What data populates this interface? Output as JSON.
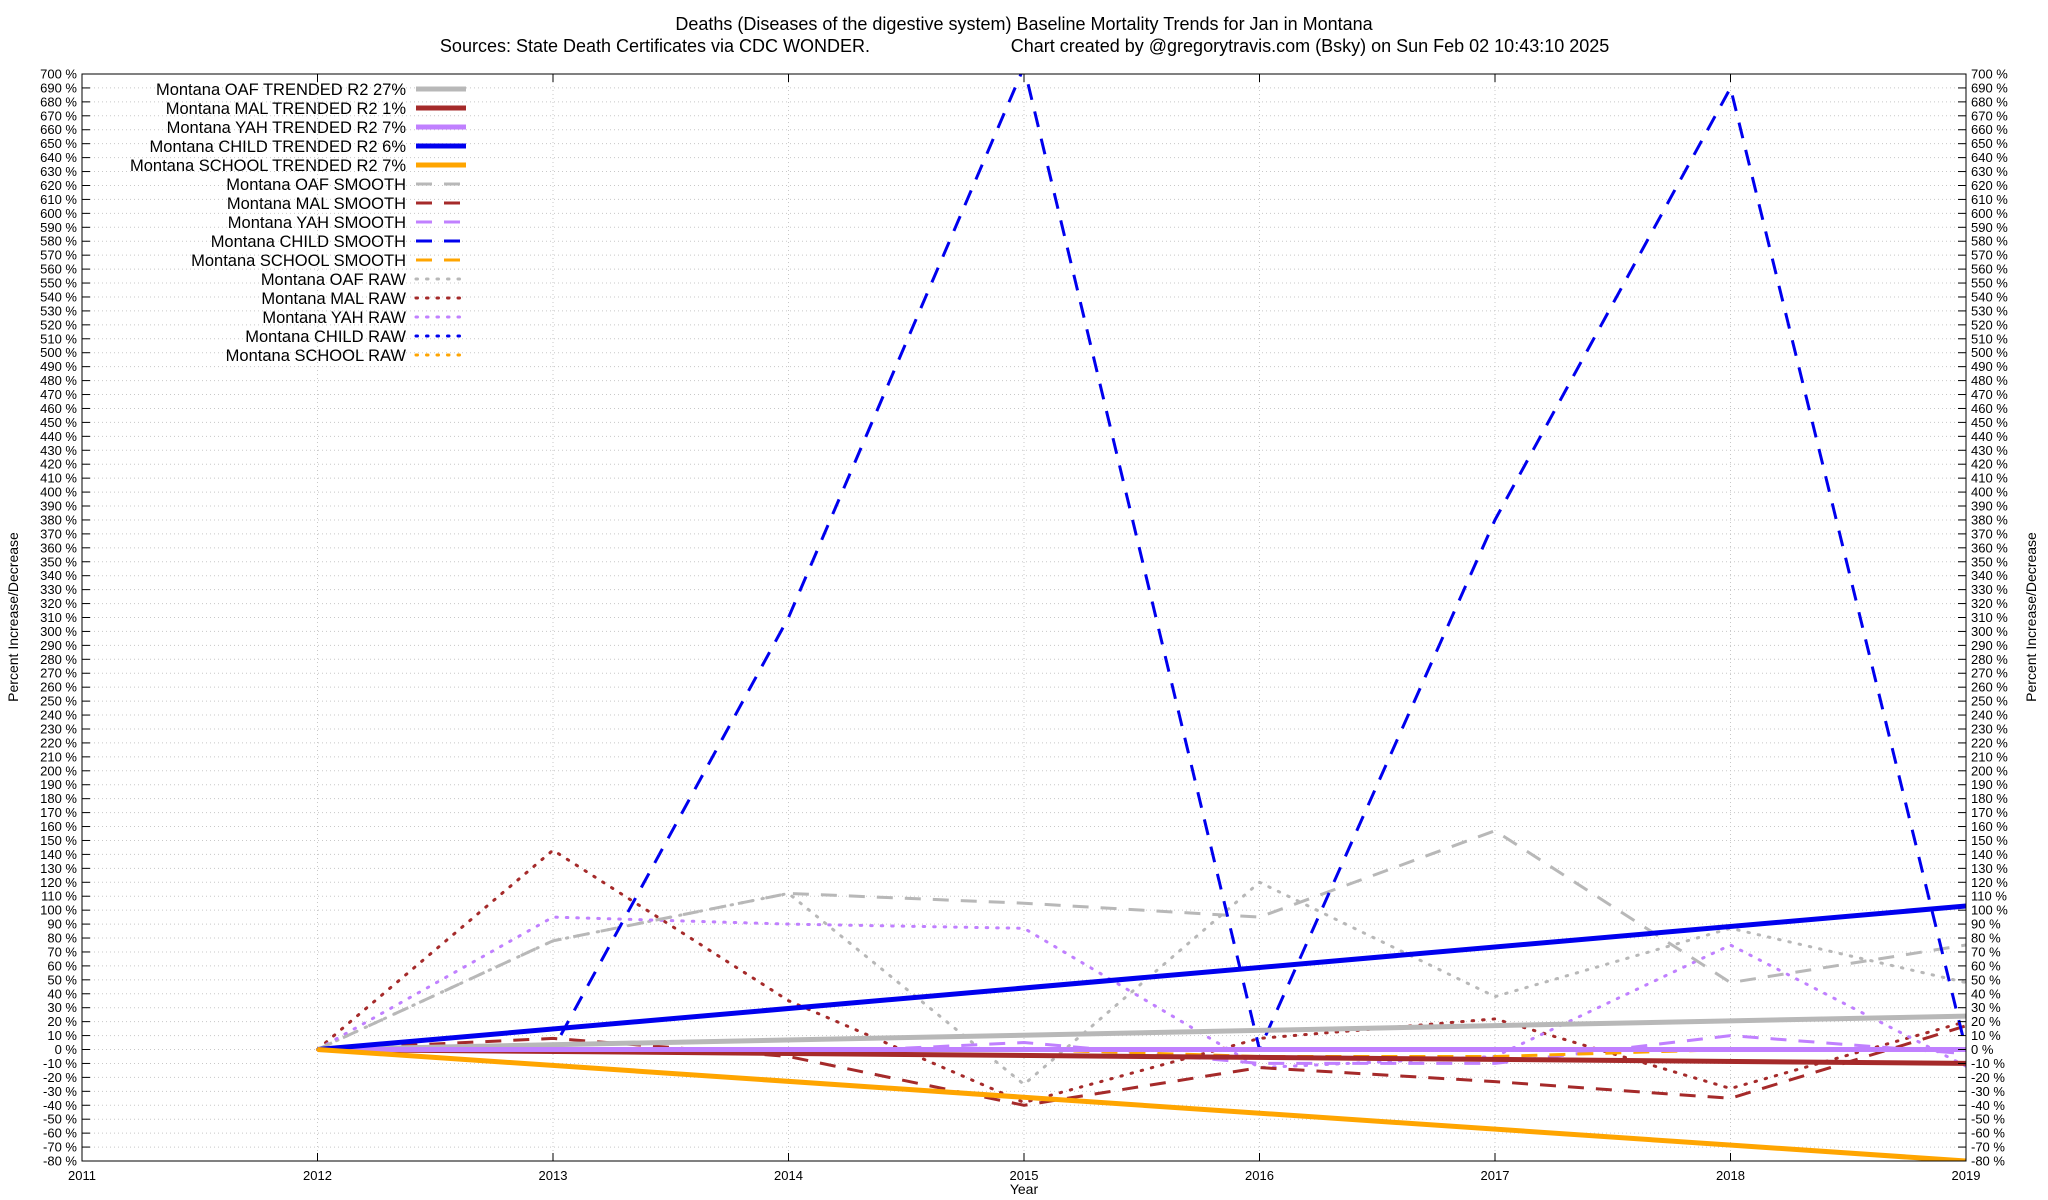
{
  "chart_data": {
    "type": "line",
    "title": "Deaths (Diseases of the digestive system)  Baseline Mortality Trends for Jan in Montana",
    "subtitle_left": "Sources: State Death Certificates via CDC WONDER.",
    "subtitle_right": "Chart created by @gregorytravis.com (Bsky) on Sun Feb 02 10:43:10 2025",
    "xlabel": "Year",
    "ylabel_left": "Percent Increase/Decrease",
    "ylabel_right": "Percent Increase/Decrease",
    "xlim": [
      2011,
      2019
    ],
    "ylim": [
      -80,
      700
    ],
    "x_ticks": [
      2011,
      2012,
      2013,
      2014,
      2015,
      2016,
      2017,
      2018,
      2019
    ],
    "y_tick_step": 10,
    "y_tick_suffix": " %",
    "grid": true,
    "legend_position": "top-left",
    "series": [
      {
        "name": "Montana OAF TRENDED R2",
        "r2": "27%",
        "style": "solid",
        "color": "#b8b8b8",
        "x": [
          2012,
          2019
        ],
        "y": [
          0,
          24
        ]
      },
      {
        "name": "Montana MAL TRENDED R2",
        "r2": "1%",
        "style": "solid",
        "color": "#a52a2a",
        "x": [
          2012,
          2019
        ],
        "y": [
          0,
          -10
        ]
      },
      {
        "name": "Montana YAH TRENDED R2",
        "r2": "7%",
        "style": "solid",
        "color": "#c080ff",
        "x": [
          2012,
          2019
        ],
        "y": [
          0,
          0
        ]
      },
      {
        "name": "Montana CHILD TRENDED R2",
        "r2": "6%",
        "style": "solid",
        "color": "#0000ee",
        "x": [
          2012,
          2019
        ],
        "y": [
          0,
          103
        ]
      },
      {
        "name": "Montana SCHOOL TRENDED R2",
        "r2": "7%",
        "style": "solid",
        "color": "#ffa500",
        "x": [
          2012,
          2019
        ],
        "y": [
          0,
          -80
        ]
      },
      {
        "name": "Montana OAF SMOOTH",
        "r2": "",
        "style": "dashed",
        "color": "#b8b8b8",
        "x": [
          2012,
          2013,
          2014,
          2015,
          2016,
          2017,
          2018,
          2019
        ],
        "y": [
          0,
          78,
          112,
          105,
          95,
          157,
          48,
          75
        ]
      },
      {
        "name": "Montana MAL SMOOTH",
        "r2": "",
        "style": "dashed",
        "color": "#a52a2a",
        "x": [
          2012,
          2013,
          2014,
          2015,
          2016,
          2017,
          2018,
          2019
        ],
        "y": [
          0,
          8,
          -5,
          -40,
          -13,
          -23,
          -35,
          17
        ]
      },
      {
        "name": "Montana YAH SMOOTH",
        "r2": "",
        "style": "dashed",
        "color": "#c080ff",
        "x": [
          2012,
          2013,
          2014,
          2015,
          2016,
          2017,
          2018,
          2019
        ],
        "y": [
          0,
          0,
          -3,
          5,
          -10,
          -10,
          10,
          -3
        ]
      },
      {
        "name": "Montana CHILD SMOOTH",
        "r2": "",
        "style": "dashed",
        "color": "#0000ee",
        "x": [
          2012,
          2013,
          2014,
          2015,
          2016,
          2017,
          2018,
          2019
        ],
        "y": [
          0,
          0,
          310,
          705,
          0,
          380,
          690,
          0
        ]
      },
      {
        "name": "Montana SCHOOL SMOOTH",
        "r2": "",
        "style": "dashed",
        "color": "#ffa500",
        "x": [
          2012,
          2013,
          2014,
          2015,
          2016,
          2017,
          2018,
          2019
        ],
        "y": [
          0,
          0,
          0,
          0,
          -5,
          -5,
          0,
          0
        ]
      },
      {
        "name": "Montana OAF RAW",
        "r2": "",
        "style": "dotted",
        "color": "#b8b8b8",
        "x": [
          2012,
          2013,
          2014,
          2015,
          2016,
          2017,
          2018,
          2019
        ],
        "y": [
          0,
          78,
          112,
          -25,
          120,
          38,
          87,
          48
        ]
      },
      {
        "name": "Montana MAL RAW",
        "r2": "",
        "style": "dotted",
        "color": "#a52a2a",
        "x": [
          2012,
          2013,
          2014,
          2015,
          2016,
          2017,
          2018,
          2019
        ],
        "y": [
          0,
          143,
          35,
          -38,
          8,
          22,
          -28,
          20
        ]
      },
      {
        "name": "Montana YAH RAW",
        "r2": "",
        "style": "dotted",
        "color": "#c080ff",
        "x": [
          2012,
          2013,
          2014,
          2015,
          2016,
          2017,
          2018,
          2019
        ],
        "y": [
          0,
          95,
          90,
          87,
          -13,
          -5,
          75,
          -12
        ]
      },
      {
        "name": "Montana CHILD RAW",
        "r2": "",
        "style": "dotted",
        "color": "#0000ee",
        "x": [
          2012,
          2013,
          2014,
          2015,
          2016,
          2017,
          2018,
          2019
        ],
        "y": [
          0,
          0,
          0,
          0,
          0,
          0,
          0,
          0
        ]
      },
      {
        "name": "Montana SCHOOL RAW",
        "r2": "",
        "style": "dotted",
        "color": "#ffa500",
        "x": [
          2012,
          2013,
          2014,
          2015,
          2016,
          2017,
          2018,
          2019
        ],
        "y": [
          0,
          0,
          0,
          0,
          0,
          0,
          0,
          0
        ]
      }
    ]
  }
}
